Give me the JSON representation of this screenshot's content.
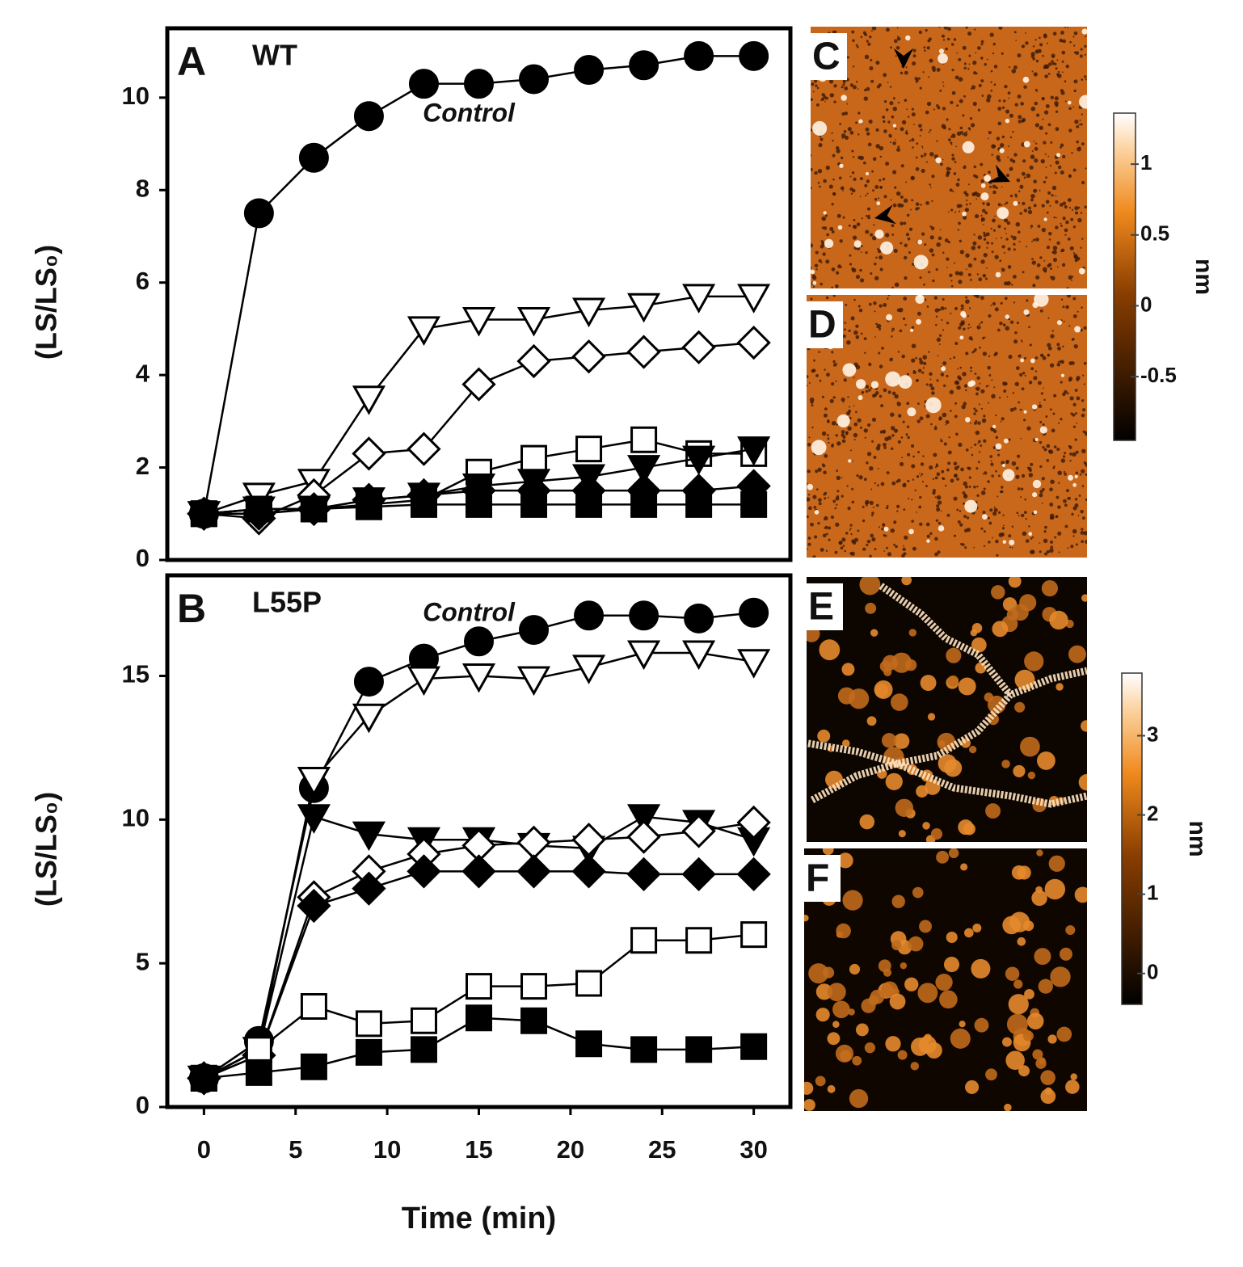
{
  "chart_data": [
    {
      "type": "line",
      "panel": "A",
      "title": "WT",
      "annotation": "Control",
      "ylabel": "(LS/LS₀)",
      "x": [
        0,
        3,
        6,
        9,
        12,
        15,
        18,
        21,
        24,
        27,
        30
      ],
      "xlim": [
        -2,
        32
      ],
      "ylim": [
        0,
        11.5
      ],
      "yticks": [
        0,
        2,
        4,
        6,
        8,
        10
      ],
      "series": [
        {
          "color": "#000000",
          "marker": "circle",
          "filled": true,
          "values": [
            1,
            7.5,
            8.7,
            9.6,
            10.3,
            10.3,
            10.4,
            10.6,
            10.7,
            10.9,
            10.9
          ]
        },
        {
          "color": "#000000",
          "marker": "triangle-down",
          "filled": false,
          "values": [
            1,
            1.4,
            1.7,
            3.5,
            5.0,
            5.2,
            5.2,
            5.4,
            5.5,
            5.7,
            5.7
          ]
        },
        {
          "color": "#000000",
          "marker": "diamond",
          "filled": false,
          "values": [
            1,
            0.9,
            1.4,
            2.3,
            2.4,
            3.8,
            4.3,
            4.4,
            4.5,
            4.6,
            4.7
          ]
        },
        {
          "color": "#000000",
          "marker": "square",
          "filled": false,
          "values": [
            1,
            1.1,
            1.1,
            1.2,
            1.3,
            1.9,
            2.2,
            2.4,
            2.6,
            2.3,
            2.3
          ]
        },
        {
          "color": "#000000",
          "marker": "triangle-down",
          "filled": true,
          "values": [
            1,
            1.1,
            1.1,
            1.3,
            1.4,
            1.6,
            1.7,
            1.8,
            2.0,
            2.2,
            2.4
          ]
        },
        {
          "color": "#000000",
          "marker": "diamond",
          "filled": true,
          "values": [
            1,
            1.0,
            1.1,
            1.3,
            1.4,
            1.5,
            1.5,
            1.5,
            1.5,
            1.5,
            1.6
          ]
        },
        {
          "color": "#000000",
          "marker": "square",
          "filled": true,
          "values": [
            1,
            1.1,
            1.1,
            1.15,
            1.2,
            1.2,
            1.2,
            1.2,
            1.2,
            1.2,
            1.2
          ]
        }
      ]
    },
    {
      "type": "line",
      "panel": "B",
      "title": "L55P",
      "annotation": "Control",
      "ylabel": "(LS/LS₀)",
      "xlabel": "Time (min)",
      "x": [
        0,
        3,
        6,
        9,
        12,
        15,
        18,
        21,
        24,
        27,
        30
      ],
      "xlim": [
        -2,
        32
      ],
      "xticks": [
        0,
        5,
        10,
        15,
        20,
        25,
        30
      ],
      "ylim": [
        0,
        18.5
      ],
      "yticks": [
        0,
        5,
        10,
        15
      ],
      "series": [
        {
          "color": "#000000",
          "marker": "circle",
          "filled": true,
          "values": [
            1,
            2.3,
            11.1,
            14.8,
            15.6,
            16.2,
            16.6,
            17.1,
            17.1,
            17.0,
            17.2
          ]
        },
        {
          "color": "#000000",
          "marker": "triangle-down",
          "filled": false,
          "values": [
            1,
            2.0,
            11.4,
            13.6,
            14.9,
            15.0,
            14.9,
            15.3,
            15.8,
            15.8,
            15.5
          ]
        },
        {
          "color": "#000000",
          "marker": "triangle-down",
          "filled": true,
          "values": [
            1,
            2.0,
            10.1,
            9.5,
            9.3,
            9.3,
            9.1,
            9.0,
            10.1,
            9.9,
            9.3
          ]
        },
        {
          "color": "#000000",
          "marker": "diamond",
          "filled": false,
          "values": [
            1,
            1.8,
            7.3,
            8.2,
            8.8,
            9.1,
            9.2,
            9.3,
            9.4,
            9.6,
            9.9
          ]
        },
        {
          "color": "#000000",
          "marker": "diamond",
          "filled": true,
          "values": [
            1,
            1.8,
            7.0,
            7.6,
            8.2,
            8.2,
            8.2,
            8.2,
            8.1,
            8.1,
            8.1
          ]
        },
        {
          "color": "#000000",
          "marker": "square",
          "filled": false,
          "values": [
            1,
            2.0,
            3.5,
            2.9,
            3.0,
            4.2,
            4.2,
            4.3,
            5.8,
            5.8,
            6.0
          ]
        },
        {
          "color": "#000000",
          "marker": "square",
          "filled": true,
          "values": [
            1,
            1.2,
            1.4,
            1.9,
            2.0,
            3.1,
            3.0,
            2.2,
            2.0,
            2.0,
            2.1
          ]
        }
      ]
    }
  ],
  "images": [
    {
      "label": "C"
    },
    {
      "label": "D"
    },
    {
      "label": "E"
    },
    {
      "label": "F"
    }
  ],
  "colorbars": [
    {
      "unit": "nm",
      "lim": [
        -0.95,
        1.36
      ],
      "ticks": [
        1,
        0.5,
        0,
        -0.5
      ]
    },
    {
      "unit": "nm",
      "lim": [
        -0.39,
        3.79
      ],
      "ticks": [
        3,
        2,
        1,
        0
      ]
    }
  ]
}
